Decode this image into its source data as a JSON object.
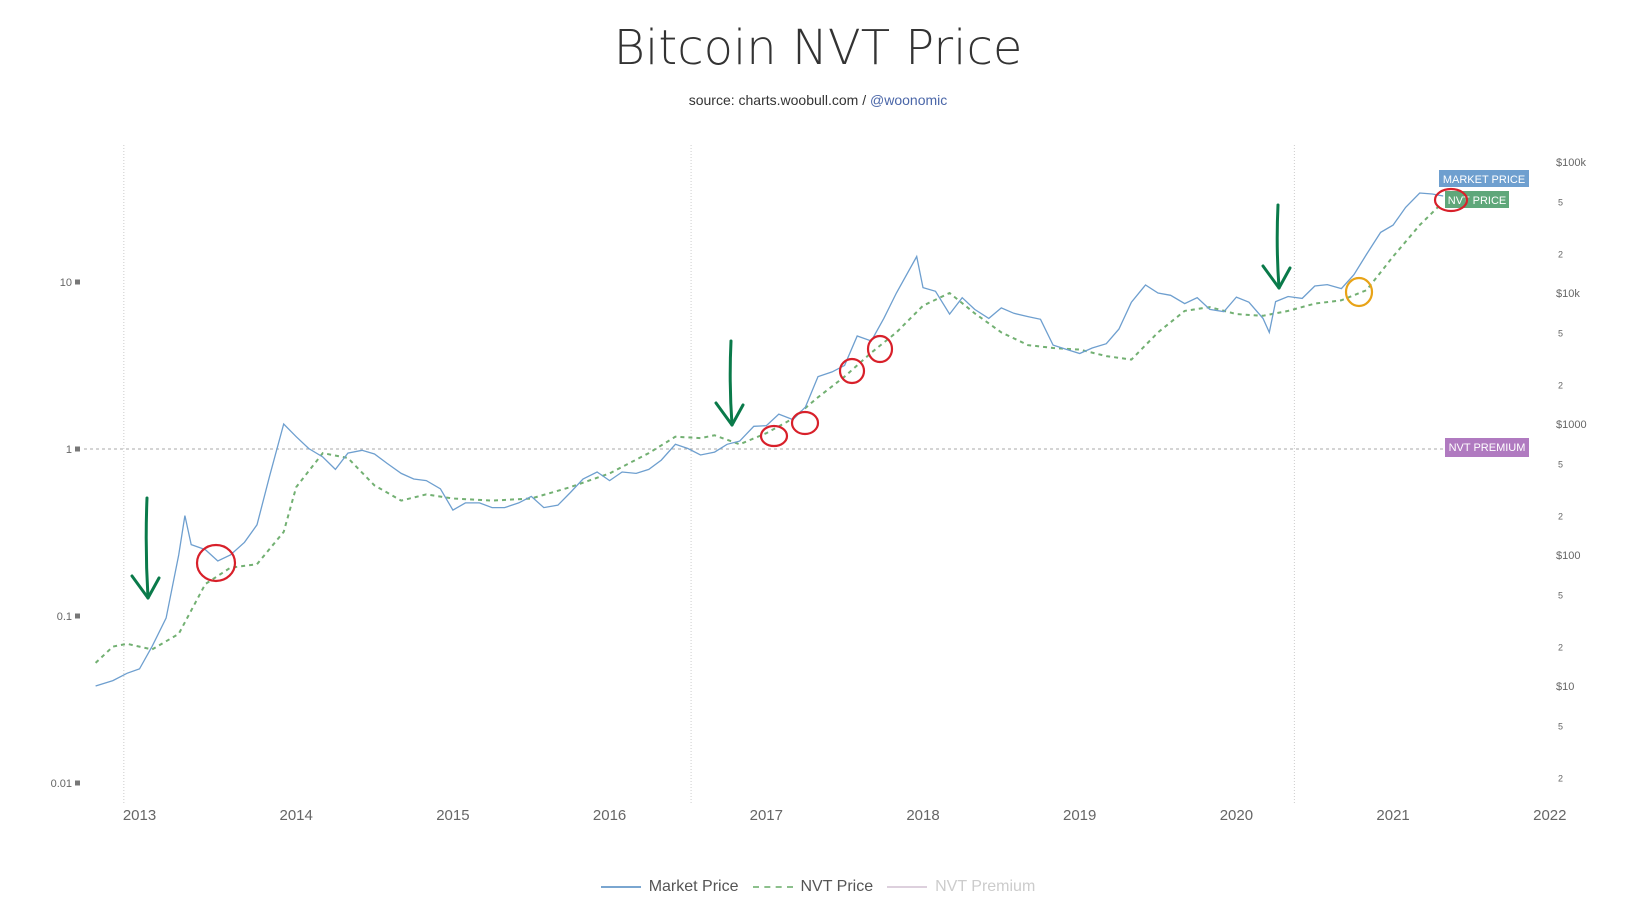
{
  "header": {
    "title": "Bitcoin NVT Price",
    "source_prefix": "source: charts.woobull.com / ",
    "source_handle": "@woonomic"
  },
  "colors": {
    "market": "#6e9fcf",
    "nvt": "#72b072",
    "premium": "#b07ac0",
    "label_nvt": "#5fa77a",
    "label_market": "#6e9fcf",
    "annot_green": "#0a7a4a",
    "annot_red": "#d8202a",
    "annot_orange": "#e8a317"
  },
  "chart_data": {
    "type": "line",
    "title": "Bitcoin NVT Price",
    "x_ticks": [
      "2013",
      "2014",
      "2015",
      "2016",
      "2017",
      "2018",
      "2019",
      "2020",
      "2021",
      "2022"
    ],
    "x_range": [
      2012.72,
      2022.0
    ],
    "left_axis": {
      "scale": "log",
      "ticks": [
        "10",
        "1",
        "0.1",
        "0.01"
      ],
      "tick_values": [
        10,
        1,
        0.1,
        0.01
      ]
    },
    "right_axis": {
      "scale": "log",
      "major_ticks": [
        "$100k",
        "$10k",
        "$1000",
        "$100",
        "$10"
      ],
      "major_values": [
        100000,
        10000,
        1000,
        100,
        10
      ],
      "minor_label_5": "5",
      "minor_label_2": "2"
    },
    "halving_lines": [
      2012.9,
      2016.52,
      2020.37
    ],
    "premium_reference": 1,
    "series": [
      {
        "name": "Market Price",
        "style": "solid",
        "x": [
          2012.72,
          2012.83,
          2012.92,
          2013.0,
          2013.08,
          2013.17,
          2013.25,
          2013.29,
          2013.33,
          2013.42,
          2013.5,
          2013.58,
          2013.67,
          2013.75,
          2013.83,
          2013.92,
          2014.0,
          2014.08,
          2014.17,
          2014.25,
          2014.33,
          2014.42,
          2014.5,
          2014.58,
          2014.67,
          2014.75,
          2014.83,
          2014.92,
          2015.0,
          2015.08,
          2015.17,
          2015.25,
          2015.33,
          2015.42,
          2015.5,
          2015.58,
          2015.67,
          2015.75,
          2015.83,
          2015.92,
          2016.0,
          2016.08,
          2016.17,
          2016.25,
          2016.33,
          2016.42,
          2016.5,
          2016.58,
          2016.67,
          2016.75,
          2016.83,
          2016.92,
          2017.0,
          2017.08,
          2017.17,
          2017.25,
          2017.33,
          2017.42,
          2017.5,
          2017.58,
          2017.67,
          2017.75,
          2017.83,
          2017.96,
          2018.0,
          2018.08,
          2018.17,
          2018.25,
          2018.33,
          2018.42,
          2018.5,
          2018.58,
          2018.67,
          2018.75,
          2018.83,
          2018.92,
          2019.0,
          2019.08,
          2019.17,
          2019.25,
          2019.33,
          2019.42,
          2019.5,
          2019.58,
          2019.67,
          2019.75,
          2019.83,
          2019.92,
          2020.0,
          2020.08,
          2020.17,
          2020.21,
          2020.25,
          2020.33,
          2020.42,
          2020.5,
          2020.58,
          2020.67,
          2020.75,
          2020.83,
          2020.92,
          2021.0,
          2021.08,
          2021.17,
          2021.25,
          2021.32
        ],
        "values": [
          10,
          11,
          12.5,
          13.5,
          20,
          33,
          100,
          200,
          120,
          110,
          90,
          100,
          125,
          170,
          400,
          1000,
          800,
          650,
          560,
          450,
          600,
          630,
          590,
          500,
          420,
          380,
          370,
          320,
          220,
          250,
          250,
          230,
          230,
          250,
          280,
          230,
          240,
          300,
          380,
          430,
          370,
          430,
          420,
          450,
          530,
          700,
          650,
          580,
          610,
          700,
          740,
          960,
          970,
          1190,
          1080,
          1350,
          2300,
          2500,
          2800,
          4700,
          4300,
          6400,
          10000,
          19000,
          11000,
          10300,
          6900,
          9200,
          7500,
          6400,
          7700,
          7000,
          6600,
          6300,
          4000,
          3700,
          3450,
          3800,
          4100,
          5300,
          8500,
          11500,
          10000,
          9600,
          8300,
          9200,
          7500,
          7200,
          9300,
          8500,
          6400,
          5000,
          8600,
          9400,
          9100,
          11300,
          11600,
          10800,
          13800,
          19700,
          29000,
          33000,
          45000,
          58000,
          57000,
          55000
        ]
      },
      {
        "name": "NVT Price",
        "style": "dashed",
        "x": [
          2012.72,
          2012.83,
          2012.92,
          2013.08,
          2013.25,
          2013.42,
          2013.58,
          2013.75,
          2013.92,
          2014.0,
          2014.17,
          2014.33,
          2014.5,
          2014.67,
          2014.83,
          2015.0,
          2015.25,
          2015.5,
          2015.75,
          2016.0,
          2016.25,
          2016.42,
          2016.58,
          2016.67,
          2016.83,
          2017.0,
          2017.17,
          2017.33,
          2017.5,
          2017.67,
          2017.83,
          2018.0,
          2018.17,
          2018.33,
          2018.5,
          2018.67,
          2018.83,
          2019.0,
          2019.17,
          2019.33,
          2019.5,
          2019.67,
          2019.83,
          2020.0,
          2020.17,
          2020.33,
          2020.5,
          2020.67,
          2020.83,
          2021.0,
          2021.17,
          2021.3
        ],
        "values": [
          15,
          20,
          21,
          19,
          25,
          60,
          80,
          85,
          150,
          330,
          600,
          550,
          340,
          260,
          290,
          270,
          260,
          270,
          330,
          420,
          600,
          800,
          780,
          820,
          700,
          850,
          1100,
          1600,
          2300,
          3500,
          5000,
          8000,
          10000,
          7000,
          5000,
          4000,
          3800,
          3700,
          3300,
          3100,
          5000,
          7300,
          7800,
          6900,
          6700,
          7300,
          8300,
          8800,
          10500,
          19000,
          33000,
          47000
        ]
      }
    ],
    "legend": [
      "Market Price",
      "NVT Price",
      "NVT Premium"
    ],
    "legend_position": "bottom-center",
    "end_labels": {
      "market": "MARKET PRICE",
      "nvt": "NVT PRICE",
      "premium": "NVT PREMIUM"
    }
  }
}
